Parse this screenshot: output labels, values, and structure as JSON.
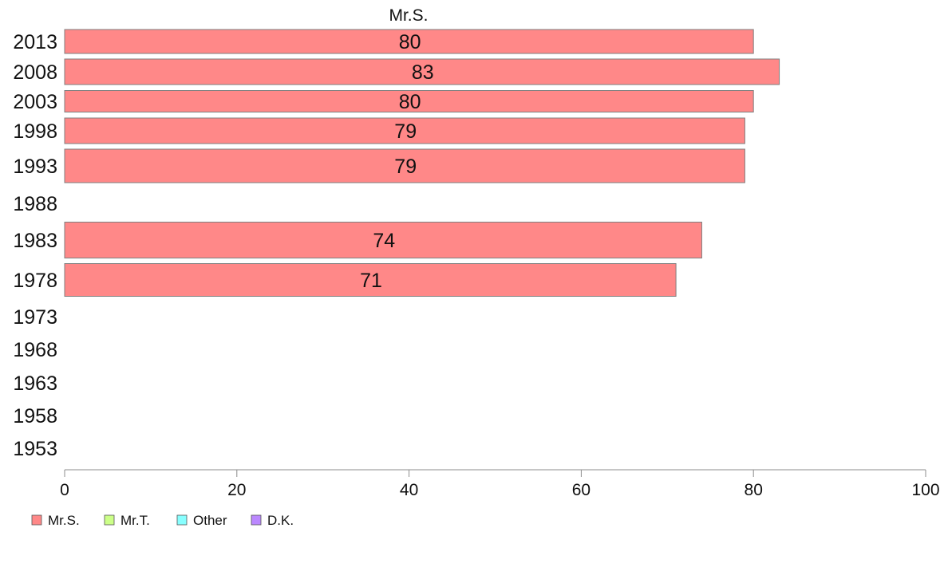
{
  "chart_data": {
    "type": "bar",
    "orientation": "horizontal",
    "title": "Mr.S.",
    "categories": [
      "2013",
      "2008",
      "2003",
      "1998",
      "1993",
      "1988",
      "1983",
      "1978",
      "1973",
      "1968",
      "1963",
      "1958",
      "1953"
    ],
    "series": [
      {
        "name": "Mr.S.",
        "color": "#ff8888",
        "values": [
          80,
          83,
          80,
          79,
          79,
          null,
          74,
          71,
          null,
          null,
          null,
          null,
          null
        ]
      },
      {
        "name": "Mr.T.",
        "color": "#ccff88",
        "values": [
          null,
          null,
          null,
          null,
          null,
          null,
          null,
          null,
          null,
          null,
          null,
          null,
          null
        ]
      },
      {
        "name": "Other",
        "color": "#88ffff",
        "values": [
          null,
          null,
          null,
          null,
          null,
          null,
          null,
          null,
          null,
          null,
          null,
          null,
          null
        ]
      },
      {
        "name": "D.K.",
        "color": "#bb88ff",
        "values": [
          null,
          null,
          null,
          null,
          null,
          null,
          null,
          null,
          null,
          null,
          null,
          null,
          null
        ]
      }
    ],
    "data_labels": [
      "80",
      "83",
      "80",
      "79",
      "79",
      "",
      "74",
      "71",
      "",
      "",
      "",
      "",
      ""
    ],
    "xlim": [
      0,
      100
    ],
    "xticks": [
      0,
      20,
      40,
      60,
      80,
      100
    ],
    "xlabel": "",
    "ylabel": "",
    "grid": false,
    "legend_position": "bottom-left"
  }
}
